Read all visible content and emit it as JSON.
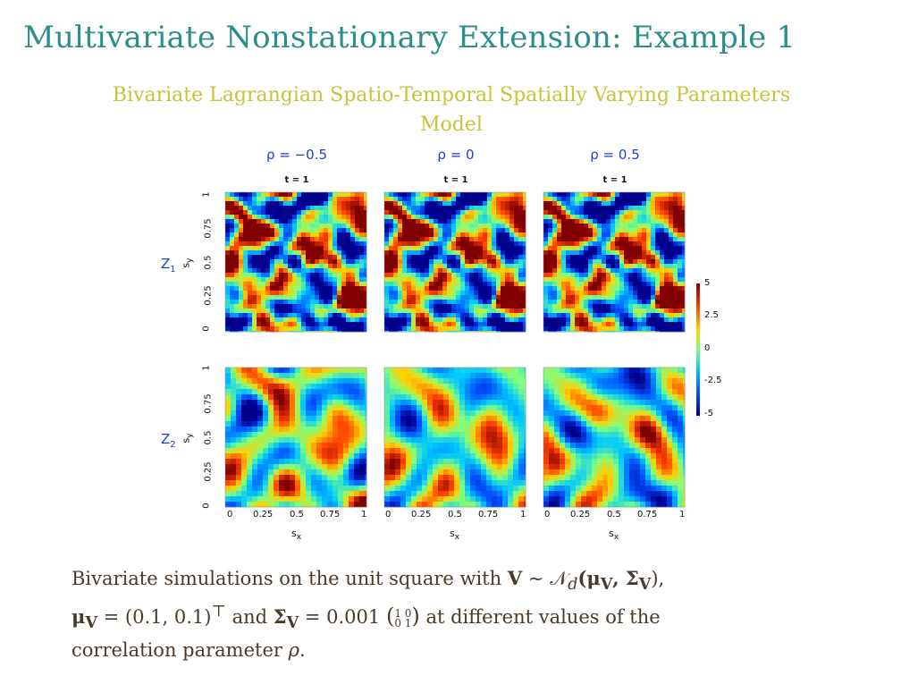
{
  "slide": {
    "title": "Multivariate Nonstationary Extension: Example 1",
    "subtitle": "Bivariate Lagrangian Spatio-Temporal Spatially Varying Parameters Model"
  },
  "figure": {
    "columns": [
      {
        "rho_label": "ρ = −0.5",
        "time_label": "t = 1"
      },
      {
        "rho_label": "ρ = 0",
        "time_label": "t = 1"
      },
      {
        "rho_label": "ρ = 0.5",
        "time_label": "t = 1"
      }
    ],
    "rows": [
      {
        "label": "Z",
        "sub": "1"
      },
      {
        "label": "Z",
        "sub": "2"
      }
    ],
    "x_ticks": [
      "0",
      "0.25",
      "0.5",
      "0.75",
      "1"
    ],
    "y_ticks": [
      "0",
      "0.25",
      "0.5",
      "0.75",
      "1"
    ],
    "x_axis_label": "s",
    "x_axis_sub": "x",
    "y_axis_label": "s",
    "y_axis_sub": "y",
    "colorbar_ticks": [
      "5",
      "2.5",
      "0",
      "-2.5",
      "-5"
    ],
    "colorbar_range": [
      -5,
      5
    ],
    "colormap": [
      "#00008f",
      "#0050ff",
      "#00c8ff",
      "#7fff7f",
      "#ffd000",
      "#ff4000",
      "#800000"
    ]
  },
  "caption": {
    "line1_a": "Bivariate simulations on the unit square with ",
    "line1_b": "V",
    "line1_c": " ∼ 𝒩",
    "line1_d": "d",
    "line1_e": "(μ",
    "line1_f": "V",
    "line1_g": ", Σ",
    "line1_h": "V",
    "line1_i": "),",
    "line2_a": "μ",
    "line2_b": "V",
    "line2_c": " = (0.1, 0.1)",
    "line2_d": "⊤",
    "line2_e": " and ",
    "line2_f": "Σ",
    "line2_g": "V",
    "line2_h": " = 0.001 ",
    "matrix_row1": "1 0",
    "matrix_row2": "0 1",
    "line2_i": " at different values of the",
    "line3_a": "correlation parameter ",
    "line3_b": "ρ",
    "line3_c": "."
  }
}
